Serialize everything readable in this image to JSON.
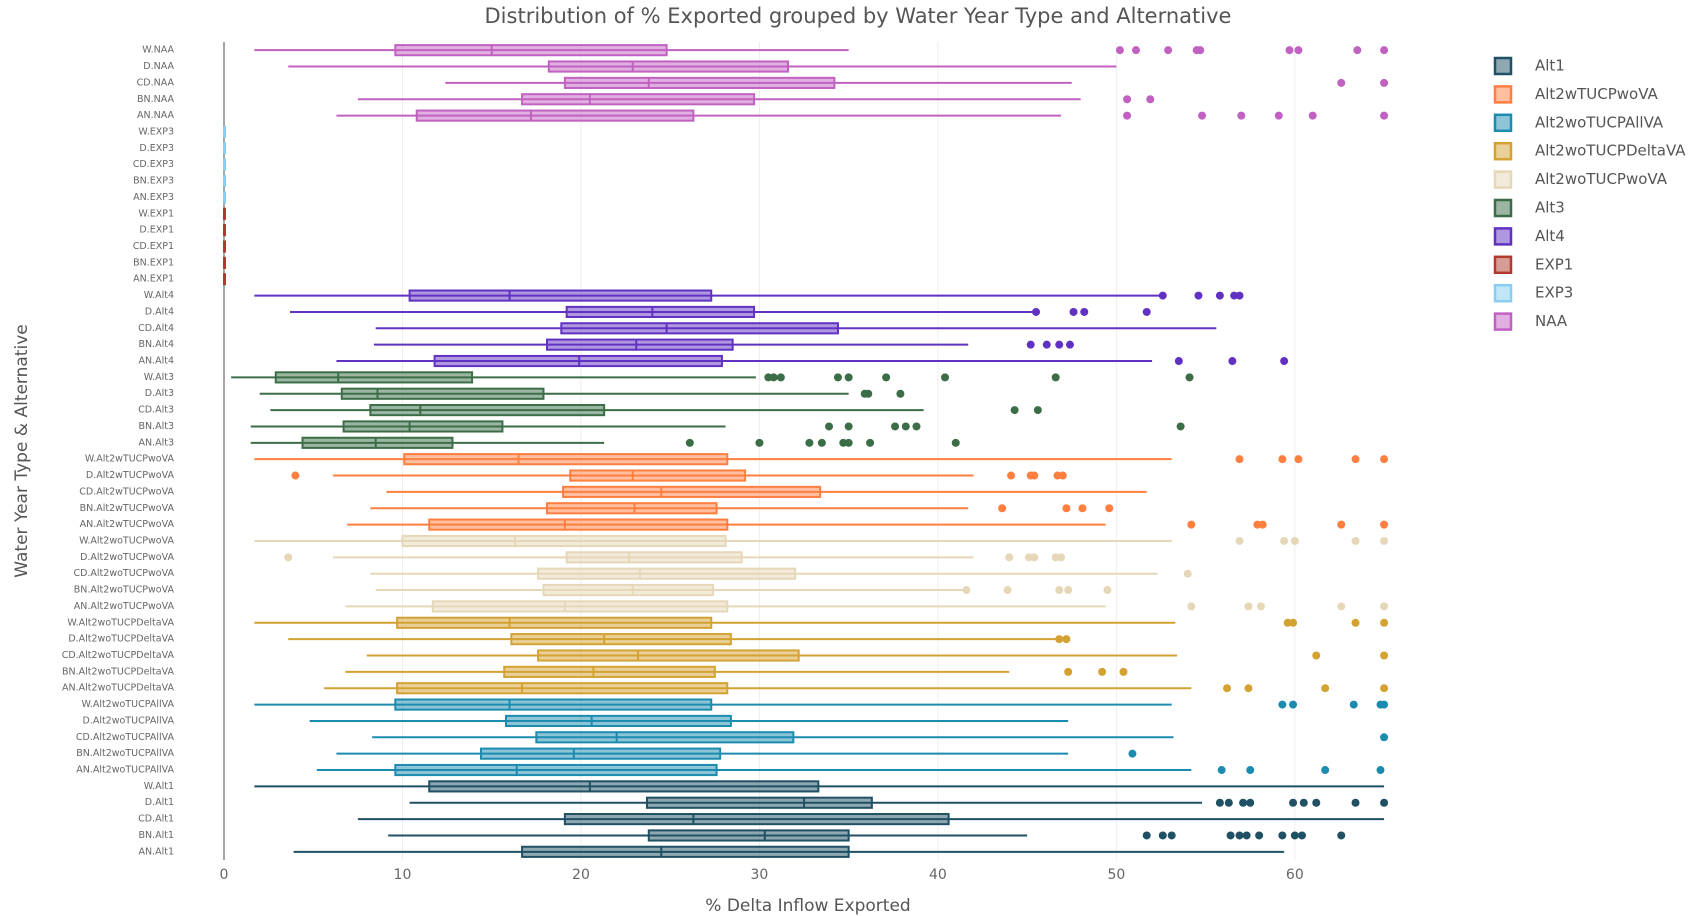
{
  "chart_data": {
    "type": "box",
    "orientation": "horizontal",
    "title": "Distribution of % Exported grouped by Water Year Type and Alternative",
    "x_label": "% Delta Inflow Exported",
    "y_label": "Water Year Type & Alternative",
    "xlim": [
      0,
      65.5
    ],
    "xticks": [
      0,
      10,
      20,
      30,
      40,
      50,
      60
    ],
    "grid": true,
    "series": [
      {
        "name": "NAA",
        "color": "#c161c1",
        "categories": [
          "W.NAA",
          "D.NAA",
          "CD.NAA",
          "BN.NAA",
          "AN.NAA"
        ],
        "boxes": [
          {
            "min": 1.7,
            "q1": 9.6,
            "median": 15.0,
            "q3": 24.8,
            "max": 35.0,
            "outliers": [
              50.2,
              51.1,
              52.9,
              54.5,
              54.7,
              59.7,
              60.2,
              63.5,
              65.0
            ]
          },
          {
            "min": 3.6,
            "q1": 18.2,
            "median": 22.9,
            "q3": 31.6,
            "max": 50.0,
            "outliers": []
          },
          {
            "min": 12.4,
            "q1": 19.1,
            "median": 23.8,
            "q3": 34.2,
            "max": 47.5,
            "outliers": [
              62.6,
              65.0
            ]
          },
          {
            "min": 7.5,
            "q1": 16.7,
            "median": 20.5,
            "q3": 29.7,
            "max": 48.0,
            "outliers": [
              50.6,
              51.9
            ]
          },
          {
            "min": 6.3,
            "q1": 10.8,
            "median": 17.2,
            "q3": 26.3,
            "max": 46.9,
            "outliers": [
              50.6,
              54.8,
              57.0,
              59.1,
              61.0,
              65.0
            ]
          }
        ]
      },
      {
        "name": "EXP3",
        "color": "#87cef0",
        "categories": [
          "W.EXP3",
          "D.EXP3",
          "CD.EXP3",
          "BN.EXP3",
          "AN.EXP3"
        ],
        "boxes": [
          {
            "min": 0,
            "q1": 0,
            "median": 0,
            "q3": 0,
            "max": 0,
            "outliers": []
          },
          {
            "min": 0,
            "q1": 0,
            "median": 0,
            "q3": 0,
            "max": 0,
            "outliers": []
          },
          {
            "min": 0,
            "q1": 0,
            "median": 0,
            "q3": 0,
            "max": 0,
            "outliers": []
          },
          {
            "min": 0,
            "q1": 0,
            "median": 0,
            "q3": 0,
            "max": 0,
            "outliers": []
          },
          {
            "min": 0,
            "q1": 0,
            "median": 0,
            "q3": 0,
            "max": 0,
            "outliers": []
          }
        ]
      },
      {
        "name": "EXP1",
        "color": "#b03a2e",
        "categories": [
          "W.EXP1",
          "D.EXP1",
          "CD.EXP1",
          "BN.EXP1",
          "AN.EXP1"
        ],
        "boxes": [
          {
            "min": 0,
            "q1": 0,
            "median": 0,
            "q3": 0,
            "max": 0,
            "outliers": []
          },
          {
            "min": 0,
            "q1": 0,
            "median": 0,
            "q3": 0,
            "max": 0,
            "outliers": []
          },
          {
            "min": 0,
            "q1": 0,
            "median": 0,
            "q3": 0,
            "max": 0,
            "outliers": []
          },
          {
            "min": 0,
            "q1": 0,
            "median": 0,
            "q3": 0,
            "max": 0,
            "outliers": []
          },
          {
            "min": 0,
            "q1": 0,
            "median": 0,
            "q3": 0,
            "max": 0,
            "outliers": []
          }
        ]
      },
      {
        "name": "Alt4",
        "color": "#6132c1",
        "categories": [
          "W.Alt4",
          "D.Alt4",
          "CD.Alt4",
          "BN.Alt4",
          "AN.Alt4"
        ],
        "boxes": [
          {
            "min": 1.7,
            "q1": 10.4,
            "median": 16.0,
            "q3": 27.3,
            "max": 52.6,
            "outliers": [
              52.6,
              54.6,
              55.8,
              56.6,
              56.9
            ]
          },
          {
            "min": 3.7,
            "q1": 19.2,
            "median": 24.0,
            "q3": 29.7,
            "max": 45.4,
            "outliers": [
              45.5,
              47.6,
              48.2,
              51.7
            ]
          },
          {
            "min": 8.5,
            "q1": 18.9,
            "median": 24.8,
            "q3": 34.4,
            "max": 55.6,
            "outliers": []
          },
          {
            "min": 8.4,
            "q1": 18.1,
            "median": 23.1,
            "q3": 28.5,
            "max": 41.7,
            "outliers": [
              45.2,
              46.1,
              46.8,
              47.4
            ]
          },
          {
            "min": 6.3,
            "q1": 11.8,
            "median": 19.9,
            "q3": 27.9,
            "max": 52.0,
            "outliers": [
              53.5,
              56.5,
              59.4
            ]
          }
        ]
      },
      {
        "name": "Alt3",
        "color": "#3b6e47",
        "categories": [
          "W.Alt3",
          "D.Alt3",
          "CD.Alt3",
          "BN.Alt3",
          "AN.Alt3"
        ],
        "boxes": [
          {
            "min": 0.4,
            "q1": 2.9,
            "median": 6.4,
            "q3": 13.9,
            "max": 29.8,
            "outliers": [
              30.5,
              30.8,
              31.2,
              34.4,
              35.0,
              37.1,
              40.4,
              46.6,
              54.1
            ]
          },
          {
            "min": 2.0,
            "q1": 6.6,
            "median": 8.6,
            "q3": 17.9,
            "max": 35.0,
            "outliers": [
              35.9,
              36.1,
              37.9
            ]
          },
          {
            "min": 2.6,
            "q1": 8.2,
            "median": 11.0,
            "q3": 21.3,
            "max": 39.2,
            "outliers": [
              44.3,
              45.6
            ]
          },
          {
            "min": 1.5,
            "q1": 6.7,
            "median": 10.4,
            "q3": 15.6,
            "max": 28.1,
            "outliers": [
              33.9,
              35.0,
              37.6,
              38.2,
              38.8,
              53.6
            ]
          },
          {
            "min": 1.5,
            "q1": 4.4,
            "median": 8.5,
            "q3": 12.8,
            "max": 21.3,
            "outliers": [
              26.1,
              30.0,
              32.8,
              33.5,
              34.7,
              35.0,
              36.2,
              41.0
            ]
          }
        ]
      },
      {
        "name": "Alt2wTUCPwoVA",
        "color": "#ff7f41",
        "categories": [
          "W.Alt2wTUCPwoVA",
          "D.Alt2wTUCPwoVA",
          "CD.Alt2wTUCPwoVA",
          "BN.Alt2wTUCPwoVA",
          "AN.Alt2wTUCPwoVA"
        ],
        "boxes": [
          {
            "min": 1.7,
            "q1": 10.1,
            "median": 16.5,
            "q3": 28.2,
            "max": 53.1,
            "outliers": [
              56.9,
              59.3,
              60.2,
              63.4,
              65.0
            ]
          },
          {
            "min": 6.1,
            "q1": 19.4,
            "median": 22.9,
            "q3": 29.2,
            "max": 42.0,
            "outliers": [
              4.0,
              44.1,
              45.2,
              45.4,
              46.7,
              47.0
            ]
          },
          {
            "min": 9.1,
            "q1": 19.0,
            "median": 24.5,
            "q3": 33.4,
            "max": 51.7,
            "outliers": []
          },
          {
            "min": 8.2,
            "q1": 18.1,
            "median": 23.0,
            "q3": 27.6,
            "max": 41.7,
            "outliers": [
              43.6,
              47.2,
              48.1,
              49.6
            ]
          },
          {
            "min": 6.9,
            "q1": 11.5,
            "median": 19.1,
            "q3": 28.2,
            "max": 49.4,
            "outliers": [
              54.2,
              57.9,
              58.2,
              62.6,
              65.0
            ]
          }
        ]
      },
      {
        "name": "Alt2woTUCPwoVA",
        "color": "#e6d7b8",
        "categories": [
          "W.Alt2woTUCPwoVA",
          "D.Alt2woTUCPwoVA",
          "CD.Alt2woTUCPwoVA",
          "BN.Alt2woTUCPwoVA",
          "AN.Alt2woTUCPwoVA"
        ],
        "boxes": [
          {
            "min": 1.7,
            "q1": 10.0,
            "median": 16.3,
            "q3": 28.1,
            "max": 53.1,
            "outliers": [
              56.9,
              59.4,
              60.0,
              63.4,
              65.0
            ]
          },
          {
            "min": 6.1,
            "q1": 19.2,
            "median": 22.7,
            "q3": 29.0,
            "max": 42.0,
            "outliers": [
              3.6,
              44.0,
              45.1,
              45.4,
              46.6,
              46.9
            ]
          },
          {
            "min": 8.2,
            "q1": 17.6,
            "median": 23.3,
            "q3": 32.0,
            "max": 52.3,
            "outliers": [
              54.0
            ]
          },
          {
            "min": 8.5,
            "q1": 17.9,
            "median": 22.9,
            "q3": 27.4,
            "max": 41.4,
            "outliers": [
              41.6,
              43.9,
              46.8,
              47.3,
              49.5
            ]
          },
          {
            "min": 6.8,
            "q1": 11.7,
            "median": 19.1,
            "q3": 28.2,
            "max": 49.4,
            "outliers": [
              54.2,
              57.4,
              58.1,
              62.6,
              65.0
            ]
          }
        ]
      },
      {
        "name": "Alt2woTUCPDeltaVA",
        "color": "#d4a232",
        "categories": [
          "W.Alt2woTUCPDeltaVA",
          "D.Alt2woTUCPDeltaVA",
          "CD.Alt2woTUCPDeltaVA",
          "BN.Alt2woTUCPDeltaVA",
          "AN.Alt2woTUCPDeltaVA"
        ],
        "boxes": [
          {
            "min": 1.7,
            "q1": 9.7,
            "median": 16.0,
            "q3": 27.3,
            "max": 53.3,
            "outliers": [
              59.6,
              59.9,
              63.4,
              65.0
            ]
          },
          {
            "min": 3.6,
            "q1": 16.1,
            "median": 21.3,
            "q3": 28.4,
            "max": 46.7,
            "outliers": [
              46.8,
              47.2
            ]
          },
          {
            "min": 8.0,
            "q1": 17.6,
            "median": 23.2,
            "q3": 32.2,
            "max": 53.4,
            "outliers": [
              61.2,
              65.0
            ]
          },
          {
            "min": 6.8,
            "q1": 15.7,
            "median": 20.7,
            "q3": 27.5,
            "max": 44.0,
            "outliers": [
              47.3,
              49.2,
              50.4
            ]
          },
          {
            "min": 5.6,
            "q1": 9.7,
            "median": 16.7,
            "q3": 28.2,
            "max": 54.2,
            "outliers": [
              56.2,
              57.4,
              61.7,
              65.0
            ]
          }
        ]
      },
      {
        "name": "Alt2woTUCPAllVA",
        "color": "#1c8bb0",
        "categories": [
          "W.Alt2woTUCPAllVA",
          "D.Alt2woTUCPAllVA",
          "CD.Alt2woTUCPAllVA",
          "BN.Alt2woTUCPAllVA",
          "AN.Alt2woTUCPAllVA"
        ],
        "boxes": [
          {
            "min": 1.7,
            "q1": 9.6,
            "median": 16.0,
            "q3": 27.3,
            "max": 53.1,
            "outliers": [
              59.3,
              59.9,
              63.3,
              64.8,
              65.0
            ]
          },
          {
            "min": 4.8,
            "q1": 15.8,
            "median": 20.6,
            "q3": 28.4,
            "max": 47.3,
            "outliers": []
          },
          {
            "min": 8.3,
            "q1": 17.5,
            "median": 22.0,
            "q3": 31.9,
            "max": 53.2,
            "outliers": [
              65.0
            ]
          },
          {
            "min": 6.3,
            "q1": 14.4,
            "median": 19.6,
            "q3": 27.8,
            "max": 47.3,
            "outliers": [
              50.9
            ]
          },
          {
            "min": 5.2,
            "q1": 9.6,
            "median": 16.4,
            "q3": 27.6,
            "max": 54.2,
            "outliers": [
              55.9,
              57.5,
              61.7,
              64.8
            ]
          }
        ]
      },
      {
        "name": "Alt1",
        "color": "#1f5063",
        "categories": [
          "W.Alt1",
          "D.Alt1",
          "CD.Alt1",
          "BN.Alt1",
          "AN.Alt1"
        ],
        "boxes": [
          {
            "min": 1.7,
            "q1": 11.5,
            "median": 20.5,
            "q3": 33.3,
            "max": 65.0,
            "outliers": []
          },
          {
            "min": 10.4,
            "q1": 23.7,
            "median": 32.5,
            "q3": 36.3,
            "max": 54.8,
            "outliers": [
              55.8,
              56.3,
              57.1,
              57.5,
              59.9,
              60.5,
              61.2,
              63.4,
              65.0
            ]
          },
          {
            "min": 7.5,
            "q1": 19.1,
            "median": 26.3,
            "q3": 40.6,
            "max": 65.0,
            "outliers": []
          },
          {
            "min": 9.2,
            "q1": 23.8,
            "median": 30.3,
            "q3": 35.0,
            "max": 45.0,
            "outliers": [
              51.7,
              52.6,
              53.1,
              56.4,
              56.9,
              57.3,
              58.0,
              59.3,
              60.0,
              60.4,
              62.6
            ]
          },
          {
            "min": 3.9,
            "q1": 16.7,
            "median": 24.5,
            "q3": 35.0,
            "max": 59.4,
            "outliers": []
          }
        ]
      }
    ]
  }
}
